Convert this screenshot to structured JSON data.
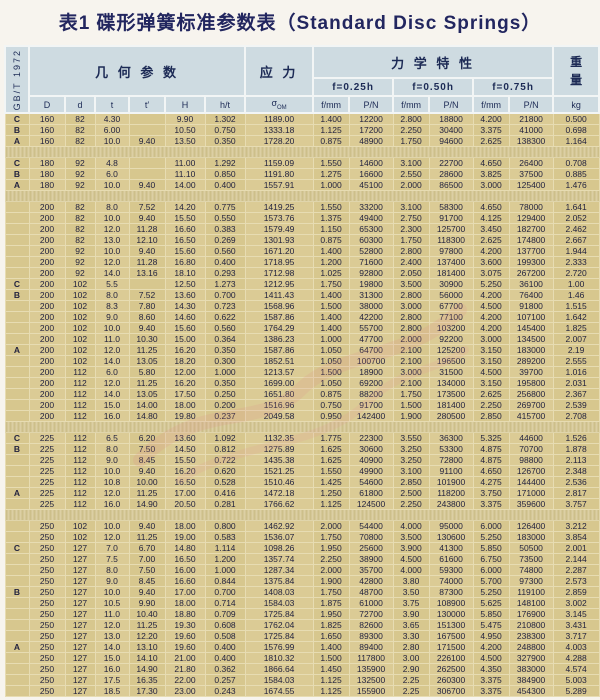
{
  "title": "表1 碟形弹簧标准参数表（Standard Disc Springs）",
  "standard": "GB/T 1972",
  "headers": {
    "geometry": "几 何 参 数",
    "stress": "应 力",
    "mechanical": "力 学 特 性",
    "weight_top": "重",
    "weight_bottom": "量",
    "f025": "f=0.25h",
    "f050": "f=0.50h",
    "f075": "f=0.75h",
    "col_D": "D",
    "col_d": "d",
    "col_t": "t",
    "col_t2": "t′",
    "col_H": "H",
    "col_ht": "h/t",
    "sigma": "σ",
    "sigma_sub": "OM",
    "f_mm": "f/mm",
    "p_n": "P/N",
    "kg": "kg"
  },
  "colors": {
    "header_bg": "#cedbe1",
    "body_bg": "#d7c78e",
    "title_text": "#22265f"
  },
  "table": {
    "rows": [
      [
        "C",
        "160",
        "82",
        "4.30",
        "",
        "9.90",
        "1.302",
        "1189.00",
        "1.400",
        "12200",
        "2.800",
        "18800",
        "4.200",
        "21800",
        "0.500"
      ],
      [
        "B",
        "160",
        "82",
        "6.00",
        "",
        "10.50",
        "0.750",
        "1333.18",
        "1.125",
        "17200",
        "2.250",
        "30400",
        "3.375",
        "41000",
        "0.698"
      ],
      [
        "A",
        "160",
        "82",
        "10.0",
        "9.40",
        "13.50",
        "0.350",
        "1728.20",
        "0.875",
        "48900",
        "1.750",
        "94600",
        "2.625",
        "138300",
        "1.164"
      ],
      "gap",
      [
        "C",
        "180",
        "92",
        "4.8",
        "",
        "11.00",
        "1.292",
        "1159.09",
        "1.550",
        "14600",
        "3.100",
        "22700",
        "4.650",
        "26400",
        "0.708"
      ],
      [
        "B",
        "180",
        "92",
        "6.0",
        "",
        "11.10",
        "0.850",
        "1191.80",
        "1.275",
        "16600",
        "2.550",
        "28600",
        "3.825",
        "37500",
        "0.885"
      ],
      [
        "A",
        "180",
        "92",
        "10.0",
        "9.40",
        "14.00",
        "0.400",
        "1557.91",
        "1.000",
        "45100",
        "2.000",
        "86500",
        "3.000",
        "125400",
        "1.476"
      ],
      "gap",
      [
        "",
        "200",
        "82",
        "8.0",
        "7.52",
        "14.20",
        "0.775",
        "1419.25",
        "1.550",
        "33200",
        "3.100",
        "58300",
        "4.650",
        "78000",
        "1.641"
      ],
      [
        "",
        "200",
        "82",
        "10.0",
        "9.40",
        "15.50",
        "0.550",
        "1573.76",
        "1.375",
        "49400",
        "2.750",
        "91700",
        "4.125",
        "129400",
        "2.052"
      ],
      [
        "",
        "200",
        "82",
        "12.0",
        "11.28",
        "16.60",
        "0.383",
        "1579.49",
        "1.150",
        "65300",
        "2.300",
        "125700",
        "3.450",
        "182700",
        "2.462"
      ],
      [
        "",
        "200",
        "82",
        "13.0",
        "12.10",
        "16.50",
        "0.269",
        "1301.93",
        "0.875",
        "60300",
        "1.750",
        "118300",
        "2.625",
        "174800",
        "2.667"
      ],
      [
        "",
        "200",
        "92",
        "10.0",
        "9.40",
        "15.60",
        "0.560",
        "1671.20",
        "1.400",
        "52800",
        "2.800",
        "97800",
        "4.200",
        "137700",
        "1.944"
      ],
      [
        "",
        "200",
        "92",
        "12.0",
        "11.28",
        "16.80",
        "0.400",
        "1718.95",
        "1.200",
        "71600",
        "2.400",
        "137400",
        "3.600",
        "199300",
        "2.333"
      ],
      [
        "",
        "200",
        "92",
        "14.0",
        "13.16",
        "18.10",
        "0.293",
        "1712.98",
        "1.025",
        "92800",
        "2.050",
        "181400",
        "3.075",
        "267200",
        "2.720"
      ],
      [
        "C",
        "200",
        "102",
        "5.5",
        "",
        "12.50",
        "1.273",
        "1212.95",
        "1.750",
        "19800",
        "3.500",
        "30900",
        "5.250",
        "36100",
        "1.00"
      ],
      [
        "B",
        "200",
        "102",
        "8.0",
        "7.52",
        "13.60",
        "0.700",
        "1411.43",
        "1.400",
        "31300",
        "2.800",
        "56000",
        "4.200",
        "76400",
        "1.46"
      ],
      [
        "",
        "200",
        "102",
        "8.3",
        "7.80",
        "14.30",
        "0.723",
        "1568.96",
        "1.500",
        "38000",
        "3.000",
        "67700",
        "4.500",
        "91800",
        "1.515"
      ],
      [
        "",
        "200",
        "102",
        "9.0",
        "8.60",
        "14.60",
        "0.622",
        "1587.86",
        "1.400",
        "42200",
        "2.800",
        "77100",
        "4.200",
        "107100",
        "1.642"
      ],
      [
        "",
        "200",
        "102",
        "10.0",
        "9.40",
        "15.60",
        "0.560",
        "1764.29",
        "1.400",
        "55700",
        "2.800",
        "103200",
        "4.200",
        "145400",
        "1.825"
      ],
      [
        "",
        "200",
        "102",
        "11.0",
        "10.30",
        "15.00",
        "0.364",
        "1386.23",
        "1.000",
        "47700",
        "2.000",
        "92200",
        "3.000",
        "134500",
        "2.007"
      ],
      [
        "A",
        "200",
        "102",
        "12.0",
        "11.25",
        "16.20",
        "0.350",
        "1587.86",
        "1.050",
        "64700",
        "2.100",
        "125200",
        "3.150",
        "183000",
        "2.19"
      ],
      [
        "",
        "200",
        "102",
        "14.0",
        "13.05",
        "18.20",
        "0.300",
        "1852.51",
        "1.050",
        "100700",
        "2.100",
        "196500",
        "3.150",
        "289200",
        "2.555"
      ],
      [
        "",
        "200",
        "112",
        "6.0",
        "5.80",
        "12.00",
        "1.000",
        "1213.57",
        "1.500",
        "18900",
        "3.000",
        "31500",
        "4.500",
        "39700",
        "1.016"
      ],
      [
        "",
        "200",
        "112",
        "12.0",
        "11.25",
        "16.20",
        "0.350",
        "1699.00",
        "1.050",
        "69200",
        "2.100",
        "134000",
        "3.150",
        "195800",
        "2.031"
      ],
      [
        "",
        "200",
        "112",
        "14.0",
        "13.05",
        "17.50",
        "0.250",
        "1651.80",
        "0.875",
        "88200",
        "1.750",
        "173500",
        "2.625",
        "256800",
        "2.367"
      ],
      [
        "",
        "200",
        "112",
        "15.0",
        "14.00",
        "18.00",
        "0.200",
        "1516.96",
        "0.750",
        "91700",
        "1.500",
        "181400",
        "2.250",
        "269700",
        "2.539"
      ],
      [
        "",
        "200",
        "112",
        "16.0",
        "14.80",
        "19.80",
        "0.237",
        "2049.58",
        "0.950",
        "142400",
        "1.900",
        "280500",
        "2.850",
        "415700",
        "2.708"
      ],
      "gap",
      [
        "C",
        "225",
        "112",
        "6.5",
        "6.20",
        "13.60",
        "1.092",
        "1132.35",
        "1.775",
        "22300",
        "3.550",
        "36300",
        "5.325",
        "44600",
        "1.526"
      ],
      [
        "B",
        "225",
        "112",
        "8.0",
        "7.50",
        "14.50",
        "0.812",
        "1275.89",
        "1.625",
        "30600",
        "3.250",
        "53300",
        "4.875",
        "70700",
        "1.878"
      ],
      [
        "",
        "225",
        "112",
        "9.0",
        "8.45",
        "15.50",
        "0.722",
        "1435.38",
        "1.625",
        "40900",
        "3.250",
        "72800",
        "4.875",
        "98800",
        "2.113"
      ],
      [
        "",
        "225",
        "112",
        "10.0",
        "9.40",
        "16.20",
        "0.620",
        "1521.25",
        "1.550",
        "49900",
        "3.100",
        "91100",
        "4.650",
        "126700",
        "2.348"
      ],
      [
        "",
        "225",
        "112",
        "10.8",
        "10.00",
        "16.50",
        "0.528",
        "1510.46",
        "1.425",
        "54600",
        "2.850",
        "101900",
        "4.275",
        "144400",
        "2.536"
      ],
      [
        "A",
        "225",
        "112",
        "12.0",
        "11.25",
        "17.00",
        "0.416",
        "1472.18",
        "1.250",
        "61800",
        "2.500",
        "118200",
        "3.750",
        "171000",
        "2.817"
      ],
      [
        "",
        "225",
        "112",
        "16.0",
        "14.90",
        "20.50",
        "0.281",
        "1766.62",
        "1.125",
        "124500",
        "2.250",
        "243800",
        "3.375",
        "359600",
        "3.757"
      ],
      "gap",
      [
        "",
        "250",
        "102",
        "10.0",
        "9.40",
        "18.00",
        "0.800",
        "1462.92",
        "2.000",
        "54400",
        "4.000",
        "95000",
        "6.000",
        "126400",
        "3.212"
      ],
      [
        "",
        "250",
        "102",
        "12.0",
        "11.25",
        "19.00",
        "0.583",
        "1536.07",
        "1.750",
        "70800",
        "3.500",
        "130600",
        "5.250",
        "183000",
        "3.854"
      ],
      [
        "C",
        "250",
        "127",
        "7.0",
        "6.70",
        "14.80",
        "1.114",
        "1098.26",
        "1.950",
        "25600",
        "3.900",
        "41300",
        "5.850",
        "50500",
        "2.001"
      ],
      [
        "",
        "250",
        "127",
        "7.5",
        "7.00",
        "16.50",
        "1.200",
        "1357.74",
        "2.250",
        "38900",
        "4.500",
        "61600",
        "6.750",
        "73500",
        "2.144"
      ],
      [
        "",
        "250",
        "127",
        "8.0",
        "7.50",
        "16.00",
        "1.000",
        "1287.34",
        "2.000",
        "35700",
        "4.000",
        "59300",
        "6.000",
        "74800",
        "2.287"
      ],
      [
        "",
        "250",
        "127",
        "9.0",
        "8.45",
        "16.60",
        "0.844",
        "1375.84",
        "1.900",
        "42800",
        "3.80",
        "74000",
        "5.700",
        "97300",
        "2.573"
      ],
      [
        "B",
        "250",
        "127",
        "10.0",
        "9.40",
        "17.00",
        "0.700",
        "1408.03",
        "1.750",
        "48700",
        "3.50",
        "87300",
        "5.250",
        "119100",
        "2.859"
      ],
      [
        "",
        "250",
        "127",
        "10.5",
        "9.90",
        "18.00",
        "0.714",
        "1584.03",
        "1.875",
        "61000",
        "3.75",
        "108900",
        "5.625",
        "148100",
        "3.002"
      ],
      [
        "",
        "250",
        "127",
        "11.0",
        "10.40",
        "18.80",
        "0.709",
        "1725.84",
        "1.950",
        "72700",
        "3.90",
        "130000",
        "5.850",
        "176900",
        "3.145"
      ],
      [
        "",
        "250",
        "127",
        "12.0",
        "11.25",
        "19.30",
        "0.608",
        "1762.04",
        "1.825",
        "82600",
        "3.65",
        "151300",
        "5.475",
        "210800",
        "3.431"
      ],
      [
        "",
        "250",
        "127",
        "13.0",
        "12.20",
        "19.60",
        "0.508",
        "1725.84",
        "1.650",
        "89300",
        "3.30",
        "167500",
        "4.950",
        "238300",
        "3.717"
      ],
      [
        "A",
        "250",
        "127",
        "14.0",
        "13.10",
        "19.60",
        "0.400",
        "1576.99",
        "1.400",
        "89400",
        "2.80",
        "171500",
        "4.200",
        "248800",
        "4.003"
      ],
      [
        "",
        "250",
        "127",
        "15.0",
        "14.10",
        "21.00",
        "0.400",
        "1810.32",
        "1.500",
        "117800",
        "3.00",
        "226100",
        "4.500",
        "327900",
        "4.288"
      ],
      [
        "",
        "250",
        "127",
        "16.0",
        "14.90",
        "21.80",
        "0.362",
        "1866.64",
        "1.450",
        "135900",
        "2.90",
        "262500",
        "4.350",
        "383000",
        "4.574"
      ],
      [
        "",
        "250",
        "127",
        "17.5",
        "16.35",
        "22.00",
        "0.257",
        "1584.03",
        "1.125",
        "132500",
        "2.25",
        "260300",
        "3.375",
        "384900",
        "5.003"
      ],
      [
        "",
        "250",
        "127",
        "18.5",
        "17.30",
        "23.00",
        "0.243",
        "1674.55",
        "1.125",
        "155900",
        "2.25",
        "306700",
        "3.375",
        "454300",
        "5.289"
      ]
    ]
  }
}
